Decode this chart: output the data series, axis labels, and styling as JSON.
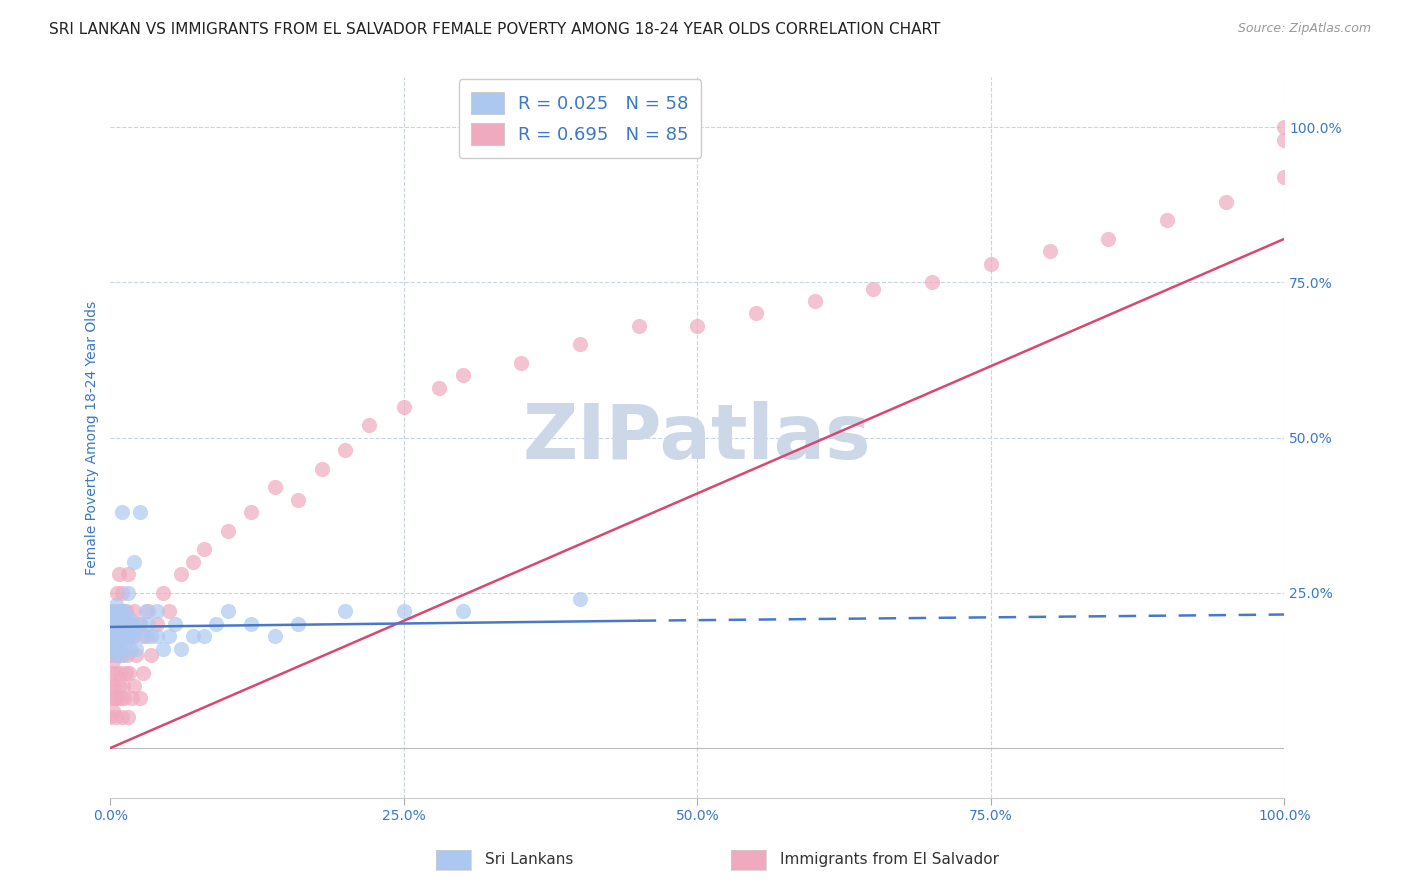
{
  "title": "SRI LANKAN VS IMMIGRANTS FROM EL SALVADOR FEMALE POVERTY AMONG 18-24 YEAR OLDS CORRELATION CHART",
  "source": "Source: ZipAtlas.com",
  "ylabel": "Female Poverty Among 18-24 Year Olds",
  "xlim": [
    0.0,
    1.0
  ],
  "ylim": [
    -0.08,
    1.08
  ],
  "xticks": [
    0.0,
    0.25,
    0.5,
    0.75,
    1.0
  ],
  "xticklabels": [
    "0.0%",
    "25.0%",
    "50.0%",
    "75.0%",
    "100.0%"
  ],
  "ytick_right_labels": [
    "100.0%",
    "75.0%",
    "50.0%",
    "25.0%"
  ],
  "ytick_right_values": [
    1.0,
    0.75,
    0.5,
    0.25
  ],
  "legend1_label": "R = 0.025   N = 58",
  "legend2_label": "R = 0.695   N = 85",
  "legend1_color": "#adc8f0",
  "legend2_color": "#f0aac0",
  "line1_color": "#4878c8",
  "line2_color": "#d84870",
  "watermark": "ZIPatlas",
  "watermark_color": "#ccd8e8",
  "background_color": "#ffffff",
  "grid_color": "#c8d4e0",
  "title_fontsize": 11,
  "axis_label_color": "#3a78c8",
  "tick_label_color": "#3a78c8",
  "sri_lankans_x": [
    0.0,
    0.0,
    0.001,
    0.001,
    0.002,
    0.002,
    0.003,
    0.003,
    0.004,
    0.004,
    0.005,
    0.005,
    0.006,
    0.006,
    0.007,
    0.007,
    0.008,
    0.008,
    0.009,
    0.009,
    0.01,
    0.01,
    0.011,
    0.012,
    0.013,
    0.014,
    0.015,
    0.015,
    0.016,
    0.017,
    0.018,
    0.019,
    0.02,
    0.021,
    0.022,
    0.025,
    0.025,
    0.028,
    0.03,
    0.032,
    0.035,
    0.04,
    0.04,
    0.045,
    0.05,
    0.055,
    0.06,
    0.07,
    0.08,
    0.09,
    0.1,
    0.12,
    0.14,
    0.16,
    0.2,
    0.25,
    0.3,
    0.4
  ],
  "sri_lankans_y": [
    0.2,
    0.18,
    0.22,
    0.16,
    0.19,
    0.21,
    0.17,
    0.22,
    0.18,
    0.2,
    0.15,
    0.23,
    0.19,
    0.17,
    0.21,
    0.16,
    0.2,
    0.18,
    0.22,
    0.17,
    0.38,
    0.15,
    0.19,
    0.22,
    0.17,
    0.2,
    0.25,
    0.18,
    0.21,
    0.16,
    0.2,
    0.18,
    0.3,
    0.19,
    0.16,
    0.2,
    0.38,
    0.18,
    0.22,
    0.2,
    0.18,
    0.22,
    0.18,
    0.16,
    0.18,
    0.2,
    0.16,
    0.18,
    0.18,
    0.2,
    0.22,
    0.2,
    0.18,
    0.2,
    0.22,
    0.22,
    0.22,
    0.24
  ],
  "el_salvador_x": [
    0.0,
    0.0,
    0.0,
    0.001,
    0.001,
    0.001,
    0.002,
    0.002,
    0.002,
    0.003,
    0.003,
    0.003,
    0.004,
    0.004,
    0.005,
    0.005,
    0.005,
    0.006,
    0.006,
    0.006,
    0.007,
    0.007,
    0.007,
    0.008,
    0.008,
    0.009,
    0.009,
    0.01,
    0.01,
    0.01,
    0.011,
    0.011,
    0.012,
    0.012,
    0.013,
    0.013,
    0.014,
    0.015,
    0.015,
    0.015,
    0.016,
    0.017,
    0.018,
    0.019,
    0.02,
    0.02,
    0.022,
    0.025,
    0.025,
    0.028,
    0.03,
    0.032,
    0.035,
    0.04,
    0.045,
    0.05,
    0.06,
    0.07,
    0.08,
    0.1,
    0.12,
    0.14,
    0.16,
    0.18,
    0.2,
    0.22,
    0.25,
    0.28,
    0.3,
    0.35,
    0.4,
    0.45,
    0.5,
    0.55,
    0.6,
    0.65,
    0.7,
    0.75,
    0.8,
    0.85,
    0.9,
    0.95,
    1.0,
    1.0,
    1.0
  ],
  "el_salvador_y": [
    0.05,
    0.1,
    0.15,
    0.08,
    0.12,
    0.18,
    0.06,
    0.14,
    0.2,
    0.1,
    0.16,
    0.22,
    0.08,
    0.18,
    0.05,
    0.12,
    0.2,
    0.08,
    0.15,
    0.25,
    0.1,
    0.18,
    0.28,
    0.12,
    0.22,
    0.08,
    0.18,
    0.05,
    0.15,
    0.25,
    0.1,
    0.2,
    0.08,
    0.18,
    0.12,
    0.22,
    0.15,
    0.05,
    0.18,
    0.28,
    0.12,
    0.2,
    0.08,
    0.18,
    0.1,
    0.22,
    0.15,
    0.08,
    0.2,
    0.12,
    0.18,
    0.22,
    0.15,
    0.2,
    0.25,
    0.22,
    0.28,
    0.3,
    0.32,
    0.35,
    0.38,
    0.42,
    0.4,
    0.45,
    0.48,
    0.52,
    0.55,
    0.58,
    0.6,
    0.62,
    0.65,
    0.68,
    0.68,
    0.7,
    0.72,
    0.74,
    0.75,
    0.78,
    0.8,
    0.82,
    0.85,
    0.88,
    0.92,
    0.98,
    1.0
  ],
  "sri_line_x0": 0.0,
  "sri_line_x1": 0.45,
  "sri_line_x2": 1.0,
  "sri_line_y0": 0.195,
  "sri_line_y1": 0.205,
  "sri_line_y2": 0.215,
  "el_line_x0": 0.0,
  "el_line_x1": 1.0,
  "el_line_y0": 0.0,
  "el_line_y1": 0.82
}
